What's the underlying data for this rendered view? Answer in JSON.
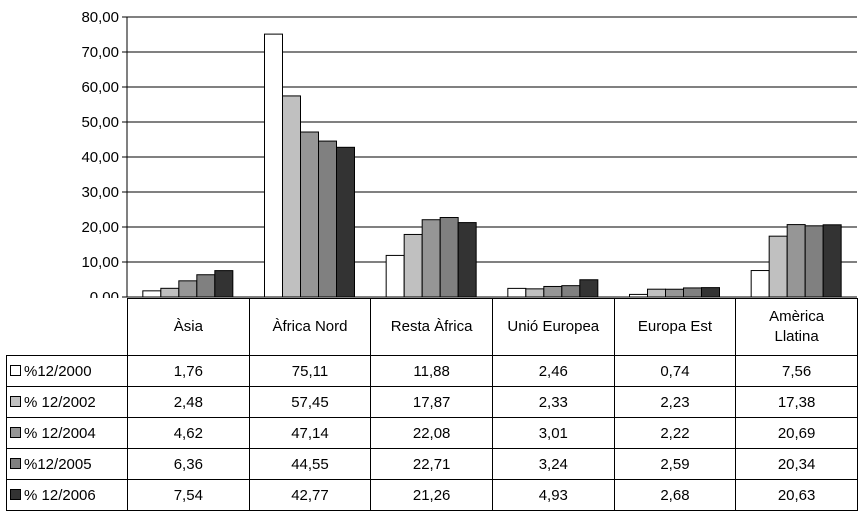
{
  "chart_data": {
    "type": "bar",
    "categories": [
      "Àsia",
      "Àfrica Nord",
      "Resta Àfrica",
      "Unió Europea",
      "Europa Est",
      "Amèrica Llatina"
    ],
    "series": [
      {
        "name": "%12/2000",
        "color": "#ffffff",
        "values": [
          1.76,
          75.11,
          11.88,
          2.46,
          0.74,
          7.56
        ],
        "labels": [
          "1,76",
          "75,11",
          "11,88",
          "2,46",
          "0,74",
          "7,56"
        ]
      },
      {
        "name": "% 12/2002",
        "color": "#c0c0c0",
        "values": [
          2.48,
          57.45,
          17.87,
          2.33,
          2.23,
          17.38
        ],
        "labels": [
          "2,48",
          "57,45",
          "17,87",
          "2,33",
          "2,23",
          "17,38"
        ]
      },
      {
        "name": "% 12/2004",
        "color": "#969696",
        "values": [
          4.62,
          47.14,
          22.08,
          3.01,
          2.22,
          20.69
        ],
        "labels": [
          "4,62",
          "47,14",
          "22,08",
          "3,01",
          "2,22",
          "20,69"
        ]
      },
      {
        "name": "%12/2005",
        "color": "#808080",
        "values": [
          6.36,
          44.55,
          22.71,
          3.24,
          2.59,
          20.34
        ],
        "labels": [
          "6,36",
          "44,55",
          "22,71",
          "3,24",
          "2,59",
          "20,34"
        ]
      },
      {
        "name": "% 12/2006",
        "color": "#333333",
        "values": [
          7.54,
          42.77,
          21.26,
          4.93,
          2.68,
          20.63
        ],
        "labels": [
          "7,54",
          "42,77",
          "21,26",
          "4,93",
          "2,68",
          "20,63"
        ]
      }
    ],
    "ylim": [
      0,
      80
    ],
    "yticks": [
      "0,00",
      "10,00",
      "20,00",
      "30,00",
      "40,00",
      "50,00",
      "60,00",
      "70,00",
      "80,00"
    ],
    "grid": true,
    "legend": "data-table"
  }
}
